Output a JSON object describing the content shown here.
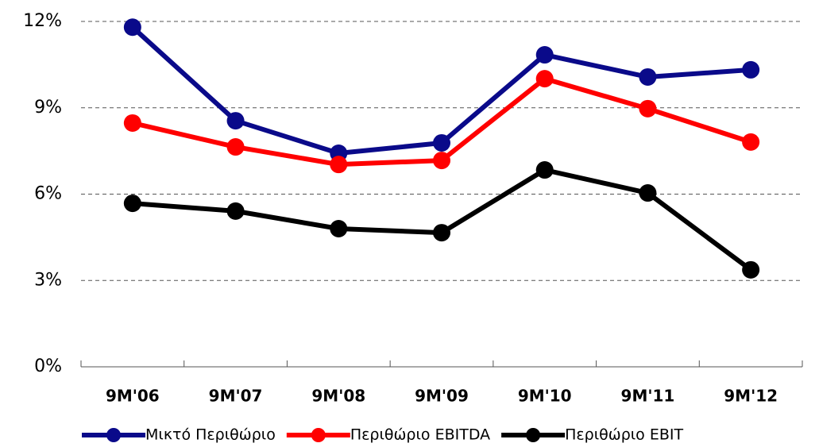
{
  "chart_data": {
    "type": "line",
    "categories": [
      "9M'06",
      "9M'07",
      "9M'08",
      "9M'09",
      "9M'10",
      "9M'11",
      "9M'12"
    ],
    "series": [
      {
        "name": "Μικτό Περιθώριο",
        "color": "#0a0a8a",
        "values": [
          11.8,
          8.55,
          7.42,
          7.78,
          10.84,
          10.07,
          10.32
        ]
      },
      {
        "name": "Περιθώριο EBITDA",
        "color": "#ff0000",
        "values": [
          8.47,
          7.64,
          7.03,
          7.17,
          10.01,
          8.97,
          7.81
        ]
      },
      {
        "name": "Περιθώριο EBIT",
        "color": "#000000",
        "values": [
          5.68,
          5.41,
          4.8,
          4.66,
          6.84,
          6.04,
          3.37
        ]
      }
    ],
    "ylim": [
      0,
      12
    ],
    "yticks": [
      {
        "value": 0,
        "label": "0%"
      },
      {
        "value": 3,
        "label": "3%"
      },
      {
        "value": 6,
        "label": "6%"
      },
      {
        "value": 9,
        "label": "9%"
      },
      {
        "value": 12,
        "label": "12%"
      }
    ],
    "grid": true,
    "legend": "bottom"
  }
}
